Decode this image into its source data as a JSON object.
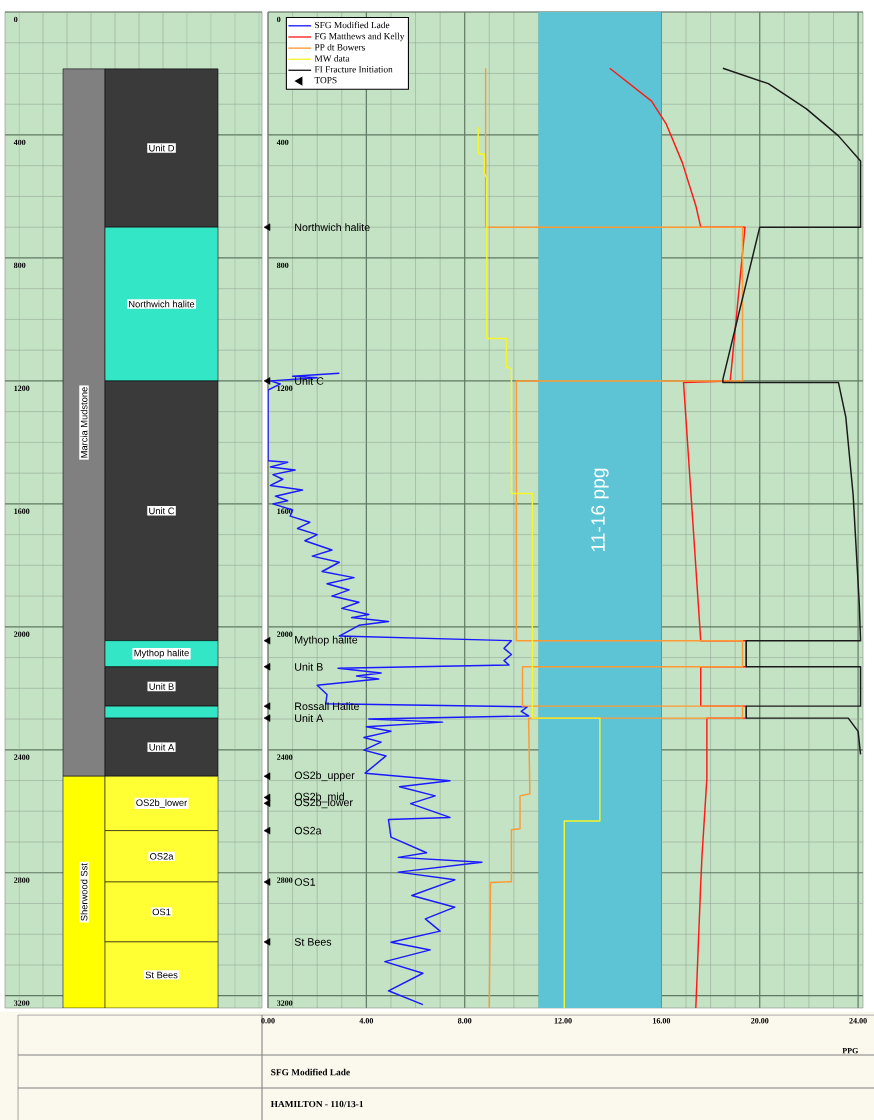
{
  "chart_data": [
    {
      "type": "bar",
      "categories": [
        null,
        null
      ],
      "ylim": [
        3240,
        0
      ],
      "yticks": [
        0,
        400,
        800,
        1200,
        1600,
        2000,
        2400,
        2800,
        3200
      ],
      "grid": true,
      "tick_labels": "y",
      "series": [
        {
          "name": "Marcia Mudstone",
          "color": "#808080",
          "base": [
            185,
            null
          ],
          "values": [
            2301,
            null
          ]
        },
        {
          "name": "Sherwood Sst",
          "color": "#ffff00",
          "base": [
            2486,
            null
          ],
          "values": [
            754,
            null
          ]
        },
        {
          "name": "Unit D",
          "color": "#3a3a3a",
          "base": [
            null,
            185
          ],
          "values": [
            null,
            515
          ]
        },
        {
          "name": "Northwich halite",
          "color": "#33e6c6",
          "base": [
            null,
            700
          ],
          "values": [
            null,
            500
          ]
        },
        {
          "name": "Unit C",
          "color": "#3a3a3a",
          "base": [
            null,
            1200
          ],
          "values": [
            null,
            845
          ]
        },
        {
          "name": "Mythop halite",
          "color": "#33e6c6",
          "base": [
            null,
            2045
          ],
          "values": [
            null,
            85
          ]
        },
        {
          "name": "Unit B",
          "color": "#3a3a3a",
          "base": [
            null,
            2130
          ],
          "values": [
            null,
            128
          ]
        },
        {
          "color": "#33e6c6",
          "base": [
            null,
            2258
          ],
          "values": [
            null,
            39
          ]
        },
        {
          "name": "Unit A",
          "color": "#3a3a3a",
          "base": [
            null,
            2297
          ],
          "values": [
            null,
            189
          ]
        },
        {
          "name": "OS2b_lower",
          "color": "#ffff33",
          "base": [
            null,
            2486
          ],
          "values": [
            null,
            177
          ]
        },
        {
          "name": "OS2a",
          "color": "#ffff33",
          "base": [
            null,
            2663
          ],
          "values": [
            null,
            167
          ]
        },
        {
          "name": "OS1",
          "color": "#ffff33",
          "base": [
            null,
            2830
          ],
          "values": [
            null,
            195
          ]
        },
        {
          "name": "St Bees",
          "color": "#ffff33",
          "base": [
            null,
            3025
          ],
          "values": [
            null,
            215
          ]
        }
      ]
    },
    {
      "type": "line",
      "xlabel": "PPG",
      "xlim": [
        0,
        24.2
      ],
      "xticks": [
        {
          "value": 0,
          "label": "0.00"
        },
        {
          "value": 4,
          "label": "4.00"
        },
        {
          "value": 8,
          "label": "8.00"
        },
        {
          "value": 12,
          "label": "12.00"
        },
        {
          "value": 16,
          "label": "16.00"
        },
        {
          "value": 20,
          "label": "20.00"
        },
        {
          "value": 24,
          "label": "24.00"
        }
      ],
      "ylim": [
        3240,
        0
      ],
      "yticks": [
        0,
        400,
        800,
        1200,
        1600,
        2000,
        2400,
        2800,
        3200
      ],
      "grid": true,
      "legend": "top left",
      "bands": [
        {
          "axis": "x",
          "from": 11,
          "to": 16,
          "label": "11-16 ppg",
          "color": "#5cc4d4"
        }
      ],
      "series": [
        {
          "name": "SFG Modified Lade",
          "color": "#1a1aff",
          "x": [
            2.9,
            1.0,
            2.0,
            0.1,
            0.5,
            0,
            0,
            0.8,
            0.1,
            1.1,
            0.2,
            0.6,
            0.1,
            1.4,
            0.3,
            0.8,
            0.2,
            1.0,
            0.9,
            1.7,
            1.2,
            2.0,
            1.5,
            2.6,
            1.8,
            2.9,
            2.2,
            3.5,
            2.4,
            3.3,
            2.6,
            3.7,
            3.0,
            4.1,
            3.4,
            4.9,
            3.7,
            2.9,
            9.9,
            9.6,
            9.9,
            9.6,
            9.8,
            2.85,
            4.6,
            3.6,
            4.5,
            2.0,
            2.4,
            2.35,
            10.55,
            10.3,
            10.6,
            4.1,
            7.1,
            4.0,
            5.0,
            3.9,
            4.6,
            3.9,
            4.8,
            3.95,
            7.4,
            5.35,
            6.8,
            5.8,
            7.4,
            4.9,
            5.0,
            6.45,
            5.3,
            8.7,
            5.3,
            7.6,
            5.85,
            7.6,
            6.4,
            7.0,
            5.0,
            6.6,
            4.75,
            6.3,
            4.9,
            6.3
          ],
          "values": [
            1175,
            1185,
            1190,
            1200,
            1210,
            1230,
            1460,
            1465,
            1480,
            1490,
            1505,
            1520,
            1540,
            1555,
            1575,
            1590,
            1600,
            1620,
            1640,
            1660,
            1680,
            1700,
            1720,
            1750,
            1770,
            1790,
            1820,
            1840,
            1860,
            1880,
            1900,
            1920,
            1940,
            1960,
            1970,
            1983,
            1995,
            2030,
            2045,
            2070,
            2090,
            2110,
            2124,
            2135,
            2150,
            2160,
            2170,
            2190,
            2220,
            2250,
            2260,
            2275,
            2290,
            2300,
            2310,
            2325,
            2340,
            2360,
            2375,
            2401,
            2420,
            2476,
            2501,
            2520,
            2550,
            2575,
            2620,
            2627,
            2684,
            2735,
            2750,
            2766,
            2798,
            2823,
            2874,
            2912,
            2950,
            2990,
            3026,
            3051,
            3089,
            3127,
            3184,
            3229
          ]
        },
        {
          "name": "FG Matthews and Kelly",
          "color": "#ff1a1a",
          "x": [
            13.9,
            15.6,
            16.2,
            16.85,
            17.4,
            17.6,
            19.4,
            18.8,
            16.9,
            17.6,
            19.45,
            19.45,
            17.6,
            17.6,
            19.45,
            19.45,
            17.85,
            17.85,
            17.65,
            17.6,
            17.4
          ],
          "values": [
            183,
            290,
            365,
            490,
            630,
            700,
            700,
            1200,
            1205,
            2045,
            2045,
            2130,
            2130,
            2258,
            2258,
            2297,
            2297,
            2493,
            2747,
            2835,
            3240
          ]
        },
        {
          "name": "PP dt Bowers",
          "color": "#ff9933",
          "x": [
            8.85,
            8.85,
            19.3,
            19.3,
            10.1,
            10.1,
            19.3,
            19.3,
            10.35,
            10.35,
            19.3,
            19.3,
            10.6,
            10.65,
            10.25,
            10.25,
            9.9,
            9.9,
            9.05,
            9.0
          ],
          "values": [
            183,
            700,
            700,
            1200,
            1200,
            2045,
            2045,
            2130,
            2130,
            2258,
            2258,
            2297,
            2297,
            2543,
            2550,
            2657,
            2660,
            2829,
            2832,
            3240
          ]
        },
        {
          "name": "MW data",
          "color": "#f5f52a",
          "x": [
            8.55,
            8.55,
            8.8,
            8.8,
            8.9,
            8.9,
            9.7,
            9.7,
            9.9,
            9.9,
            10.75,
            10.75,
            13.5,
            13.5,
            12.05,
            12.05
          ],
          "values": [
            375,
            462,
            462,
            525,
            540,
            1062,
            1062,
            1155,
            1160,
            1566,
            1566,
            2297,
            2297,
            2632,
            2632,
            3240
          ]
        },
        {
          "name": "FI Fracture Initiation",
          "color": "#1a1a1a",
          "x": [
            18.5,
            20.35,
            21.9,
            23.2,
            24.1,
            24.1,
            20.0,
            18.5,
            18.5,
            23.2,
            23.5,
            23.8,
            24.05,
            24.1,
            19.45,
            19.45,
            24.1,
            24.1,
            19.45,
            19.45,
            23.6,
            24.0,
            24.1
          ],
          "values": [
            183,
            233,
            315,
            403,
            485,
            700,
            700,
            1195,
            1205,
            1205,
            1318,
            1573,
            1928,
            2045,
            2045,
            2130,
            2130,
            2258,
            2258,
            2297,
            2297,
            2340,
            2415
          ]
        },
        {
          "name": "TOPS",
          "type": "scatter",
          "marker": "triangle",
          "color": "#000000",
          "x": [
            0,
            0,
            0,
            0,
            0,
            0,
            0,
            0,
            0,
            0,
            0,
            0
          ],
          "values": [
            700,
            1200,
            2045,
            2130,
            2258,
            2297,
            2486,
            2555,
            2574,
            2663,
            2830,
            3025
          ]
        }
      ],
      "annotations": [
        "Northwich halite",
        "Unit C",
        "Mythop halite",
        "Unit B",
        "Rossall Halite",
        "Unit A",
        "OS2b_upper",
        "OS2b_mid",
        "OS2b_lower",
        "OS2a",
        "OS1",
        "St Bees",
        "SFG Modified Lade",
        "HAMILTON - 110/13-1"
      ]
    }
  ]
}
